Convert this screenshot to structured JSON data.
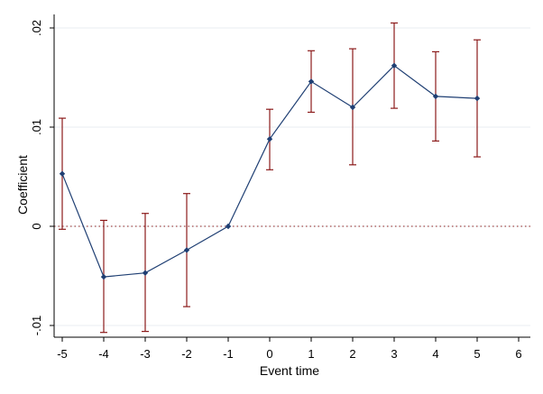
{
  "chart_data": {
    "type": "line",
    "xlabel": "Event time",
    "ylabel": "Coefficient",
    "xlim": [
      -5,
      6
    ],
    "ylim": [
      -0.0105,
      0.0205
    ],
    "x_ticks": [
      -5,
      -4,
      -3,
      -2,
      -1,
      0,
      1,
      2,
      3,
      4,
      5,
      6
    ],
    "x_tick_labels": [
      "-5",
      "-4",
      "-3",
      "-2",
      "-1",
      "0",
      "1",
      "2",
      "3",
      "4",
      "5",
      "6"
    ],
    "y_ticks": [
      -0.01,
      0,
      0.01,
      0.02
    ],
    "y_tick_labels": [
      "-.01",
      "0",
      ".01",
      ".02"
    ],
    "grid": true,
    "zero_reference_line": true,
    "series": [
      {
        "x": [
          -5,
          -4,
          -3,
          -2,
          -1,
          0,
          1,
          2,
          3,
          4,
          5
        ],
        "y": [
          0.0053,
          -0.0051,
          -0.0047,
          -0.0024,
          0.0,
          0.0088,
          0.0146,
          0.012,
          0.0162,
          0.0131,
          0.0129
        ],
        "ci_low": [
          -0.0003,
          -0.0107,
          -0.0106,
          -0.0081,
          0.0,
          0.0057,
          0.0115,
          0.0062,
          0.0119,
          0.0086,
          0.007
        ],
        "ci_high": [
          0.0109,
          0.0006,
          0.0013,
          0.0033,
          0.0,
          0.0118,
          0.0177,
          0.0179,
          0.0205,
          0.0176,
          0.0188
        ]
      }
    ],
    "colors": {
      "line": "#1f3f73",
      "marker": "#1f3f73",
      "errorbar": "#8b1a1a",
      "zero_line": "#8b1a1a",
      "grid": "#e8eef2"
    }
  }
}
